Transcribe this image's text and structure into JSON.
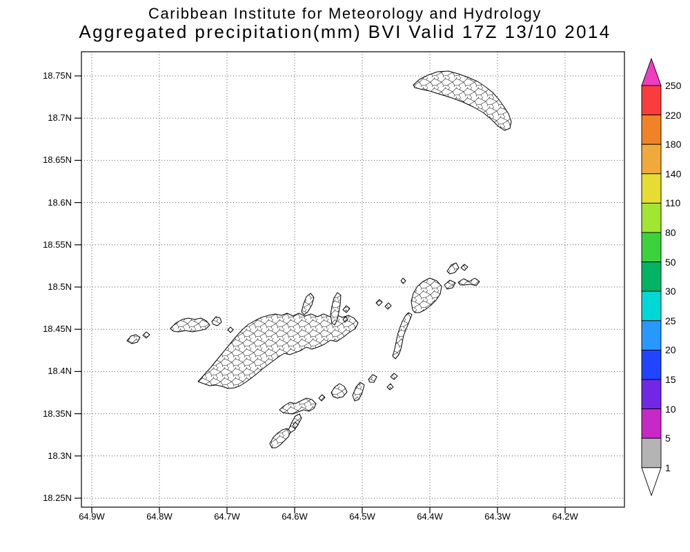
{
  "header": {
    "line1": "Caribbean Institute for Meteorology and Hydrology",
    "line2": "Aggregated precipitation(mm) BVI Valid 17Z 13/10 2014"
  },
  "map": {
    "y_ticks": [
      "18.75N",
      "18.7N",
      "18.65N",
      "18.6N",
      "18.55N",
      "18.5N",
      "18.45N",
      "18.4N",
      "18.35N",
      "18.3N",
      "18.25N"
    ],
    "x_ticks": [
      "64.9W",
      "64.8W",
      "64.7W",
      "64.6W",
      "64.5W",
      "64.4W",
      "64.3W",
      "64.2W"
    ]
  },
  "colorbar": {
    "labels": [
      "250",
      "220",
      "180",
      "140",
      "110",
      "80",
      "50",
      "30",
      "25",
      "20",
      "15",
      "10",
      "5",
      "1"
    ],
    "arrow_top_color": "#f03cbe",
    "arrow_bottom_color": "#ffffff",
    "segment_colors": [
      "#fa3c3c",
      "#f08228",
      "#f0aa3c",
      "#e6dc32",
      "#a0e632",
      "#3cd23c",
      "#00b464",
      "#00d8d8",
      "#2898ff",
      "#2044ff",
      "#7028e6",
      "#c828c8",
      "#b4b4b4"
    ]
  },
  "chart_data": {
    "type": "heatmap",
    "title": "Aggregated precipitation(mm) BVI Valid 17Z 13/10 2014",
    "institution": "Caribbean Institute for Meteorology and Hydrology",
    "region": "BVI",
    "valid_time": "17Z 13/10 2014",
    "units": "mm",
    "x_ticks": [
      "64.9W",
      "64.8W",
      "64.7W",
      "64.6W",
      "64.5W",
      "64.4W",
      "64.3W",
      "64.2W"
    ],
    "y_ticks": [
      "18.25N",
      "18.3N",
      "18.35N",
      "18.4N",
      "18.45N",
      "18.5N",
      "18.55N",
      "18.6N",
      "18.65N",
      "18.7N",
      "18.75N"
    ],
    "lon_range_deg_west": [
      64.92,
      64.11
    ],
    "lat_range_deg_north": [
      18.24,
      18.78
    ],
    "colorbar_levels_mm": [
      1,
      5,
      10,
      15,
      20,
      25,
      30,
      50,
      80,
      110,
      140,
      180,
      220,
      250
    ],
    "colorbar_colors_low_to_high": [
      "#ffffff",
      "#b4b4b4",
      "#c828c8",
      "#7028e6",
      "#2044ff",
      "#2898ff",
      "#00d8d8",
      "#00b464",
      "#3cd23c",
      "#a0e632",
      "#e6dc32",
      "#f0aa3c",
      "#f08228",
      "#fa3c3c",
      "#f03cbe"
    ],
    "grid": "dotted",
    "shading": "no cells shaded; all island catchment polygons rendered white (precipitation below 1 mm)"
  }
}
